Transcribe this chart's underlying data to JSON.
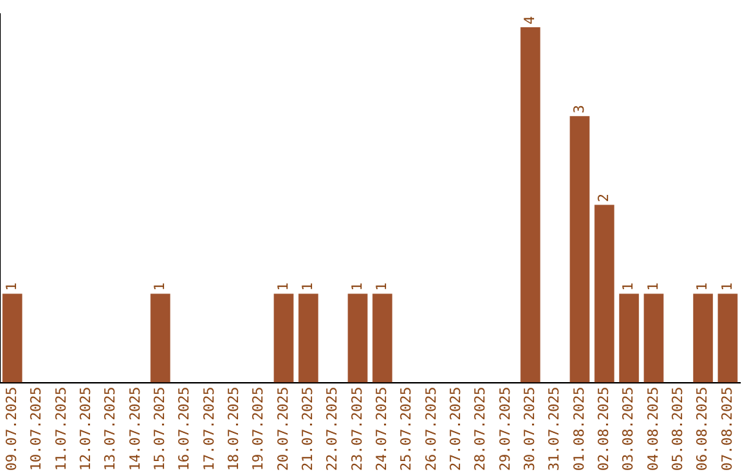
{
  "chart_data": {
    "type": "bar",
    "categories": [
      "09.07.2025",
      "10.07.2025",
      "11.07.2025",
      "12.07.2025",
      "13.07.2025",
      "14.07.2025",
      "15.07.2025",
      "16.07.2025",
      "17.07.2025",
      "18.07.2025",
      "19.07.2025",
      "20.07.2025",
      "21.07.2025",
      "22.07.2025",
      "23.07.2025",
      "24.07.2025",
      "25.07.2025",
      "26.07.2025",
      "27.07.2025",
      "28.07.2025",
      "29.07.2025",
      "30.07.2025",
      "31.07.2025",
      "01.08.2025",
      "02.08.2025",
      "03.08.2025",
      "04.08.2025",
      "05.08.2025",
      "06.08.2025",
      "07.08.2025"
    ],
    "values": [
      1,
      null,
      null,
      null,
      null,
      null,
      1,
      null,
      null,
      null,
      null,
      1,
      1,
      null,
      1,
      1,
      null,
      null,
      null,
      null,
      null,
      4,
      null,
      3,
      2,
      1,
      1,
      null,
      1,
      1
    ],
    "color": "#a0522d",
    "ylim": [
      0,
      4.15
    ],
    "data_labels": true,
    "grid": false,
    "legend": false,
    "tick_labels": "x"
  }
}
